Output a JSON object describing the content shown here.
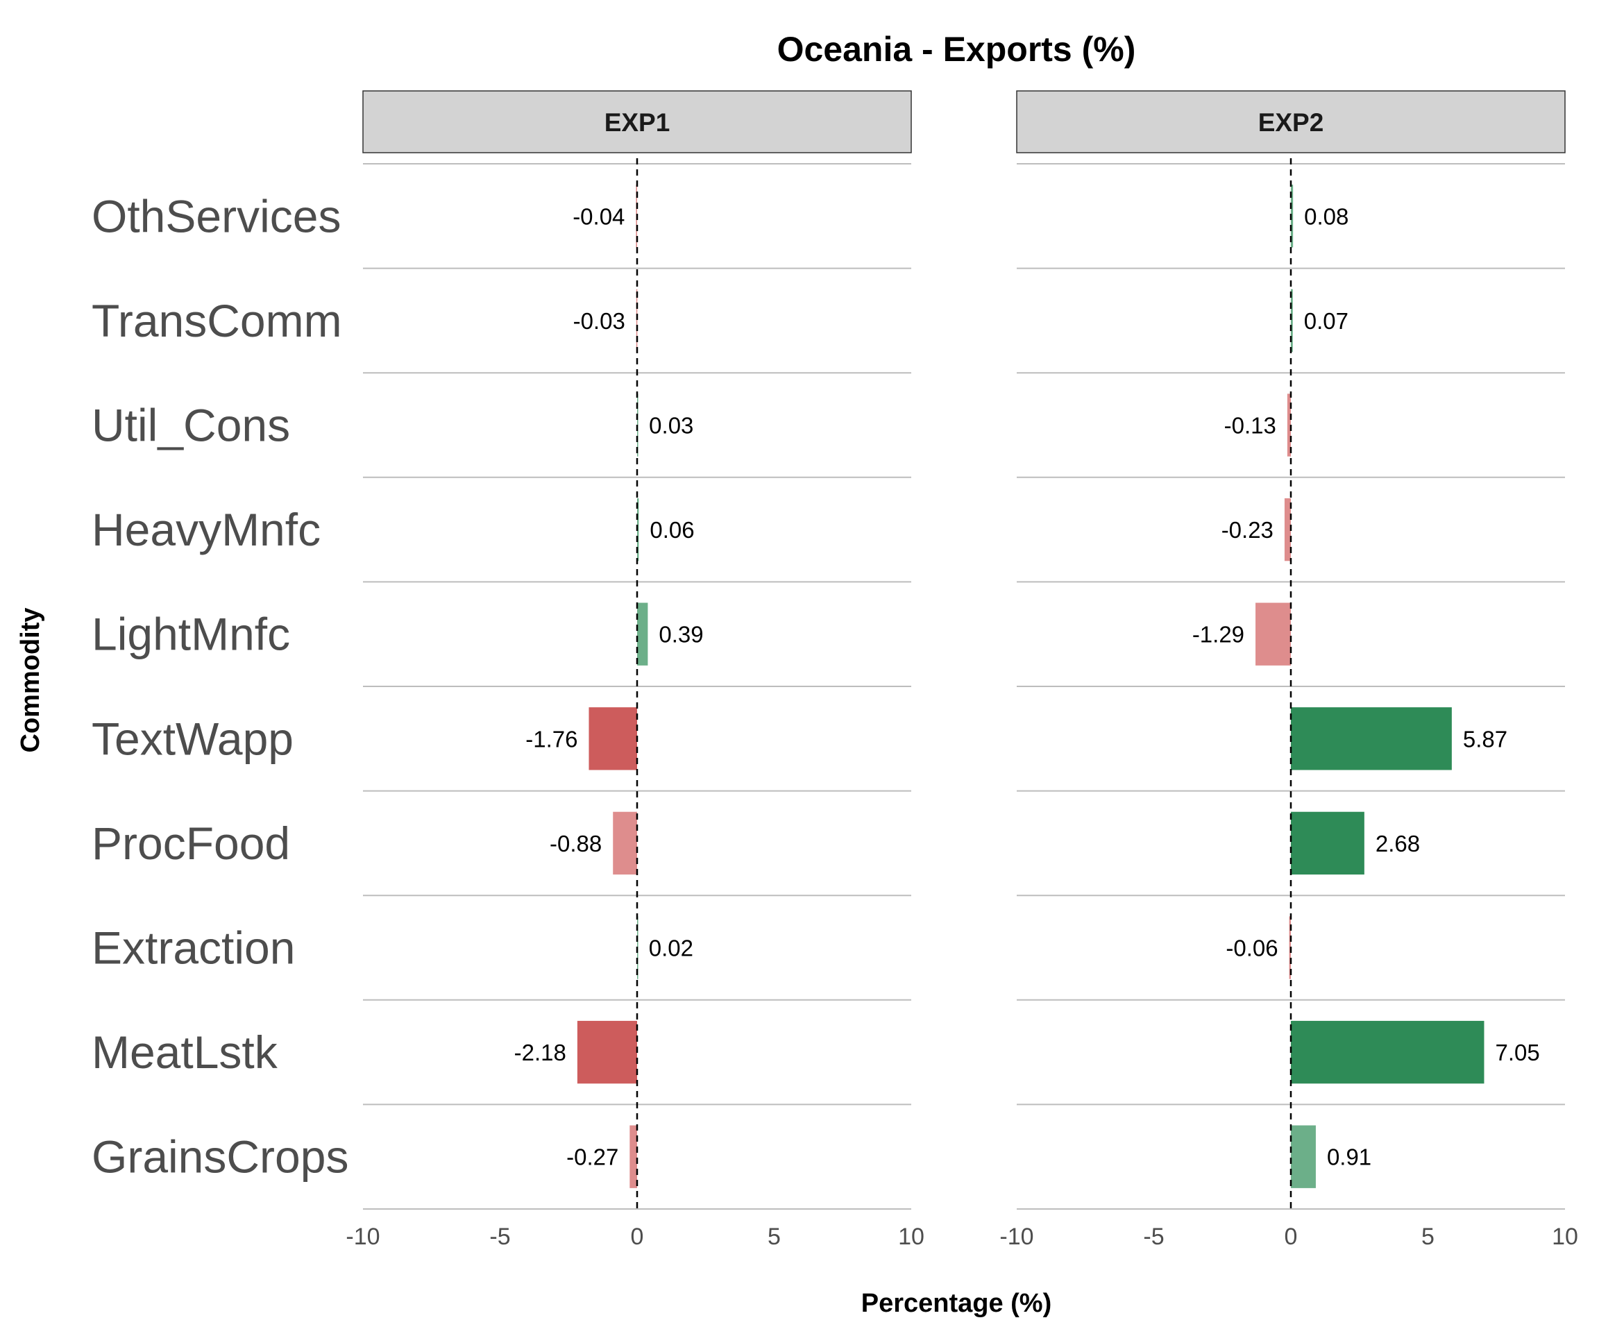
{
  "chart_data": {
    "type": "bar",
    "orientation": "horizontal",
    "title": "Oceania - Exports (%)",
    "xlabel": "Percentage (%)",
    "ylabel": "Commodity",
    "xlim": [
      -10,
      10
    ],
    "x_ticks": [
      -10,
      -5,
      0,
      5,
      10
    ],
    "tick_labels": [
      "-10",
      "-5",
      "0",
      "5",
      "10"
    ],
    "grid": "horizontal-separators",
    "reference_line": 0,
    "categories": [
      "OthServices",
      "TransComm",
      "Util_Cons",
      "HeavyMnfc",
      "LightMnfc",
      "TextWapp",
      "ProcFood",
      "Extraction",
      "MeatLstk",
      "GrainsCrops"
    ],
    "series": [
      {
        "name": "EXP1",
        "values": [
          -0.04,
          -0.03,
          0.03,
          0.06,
          0.39,
          -1.76,
          -0.88,
          0.02,
          -2.18,
          -0.27
        ],
        "labels": [
          "-0.04",
          "-0.03",
          "0.03",
          "0.06",
          "0.39",
          "-1.76",
          "-0.88",
          "0.02",
          "-2.18",
          "-0.27"
        ]
      },
      {
        "name": "EXP2",
        "values": [
          0.08,
          0.07,
          -0.13,
          -0.23,
          -1.29,
          5.87,
          2.68,
          -0.06,
          7.05,
          0.91
        ],
        "labels": [
          "0.08",
          "0.07",
          "-0.13",
          "-0.23",
          "-1.29",
          "5.87",
          "2.68",
          "-0.06",
          "7.05",
          "0.91"
        ]
      }
    ],
    "colors": {
      "positive_strong": "#2e8b57",
      "positive_light": "#6caf89",
      "negative_strong": "#cd5c5c",
      "negative_light": "#de8d8d",
      "strip_fill": "#d3d3d3",
      "separator": "#bdbdbd"
    }
  }
}
